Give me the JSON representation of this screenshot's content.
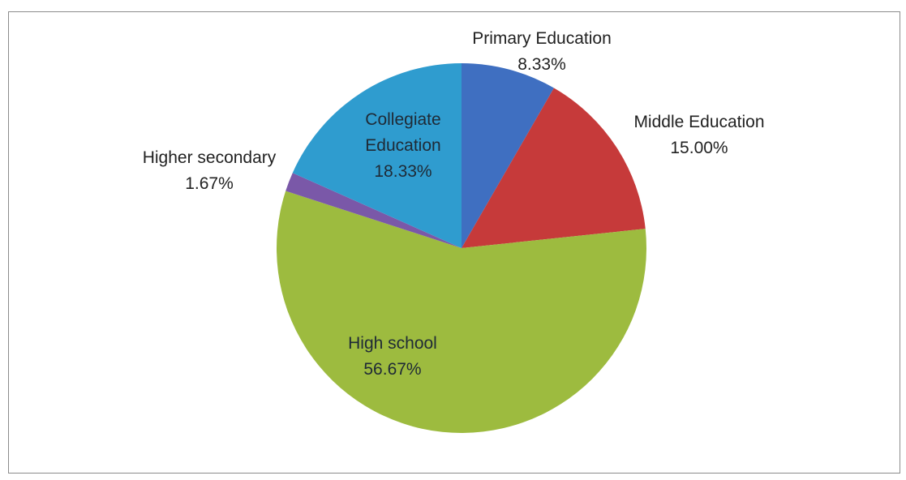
{
  "chart_data": {
    "type": "pie",
    "start_angle_deg": 0,
    "direction": "clockwise",
    "slices": [
      {
        "name": "Primary Education",
        "value": 8.33,
        "value_label": "8.33%",
        "color": "#3f6fc1"
      },
      {
        "name": "Middle Education",
        "value": 15.0,
        "value_label": "15.00%",
        "color": "#c63a3a"
      },
      {
        "name": "High school",
        "value": 56.67,
        "value_label": "56.67%",
        "color": "#9dbb3f"
      },
      {
        "name": "Higher secondary",
        "value": 1.67,
        "value_label": "1.67%",
        "color": "#7a58a8"
      },
      {
        "name": "Collegiate Education",
        "value": 18.33,
        "value_label": "18.33%",
        "color": "#2f9ccf"
      }
    ],
    "label_lines": {
      "Primary Education": [
        "Primary Education",
        "8.33%"
      ],
      "Middle Education": [
        "Middle Education",
        "15.00%"
      ],
      "High school": [
        "High school",
        "56.67%"
      ],
      "Higher secondary": [
        "Higher secondary",
        "1.67%"
      ],
      "Collegiate Education": [
        "Collegiate",
        "Education",
        "18.33%"
      ]
    },
    "legend": "none",
    "grid": false
  }
}
